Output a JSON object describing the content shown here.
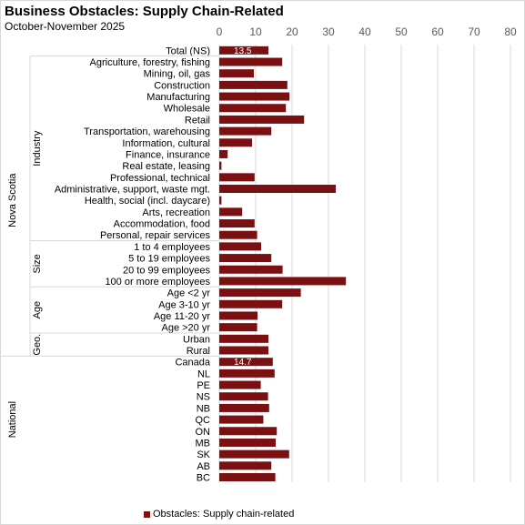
{
  "title": "Business Obstacles: Supply Chain-Related",
  "subtitle": "October-November 2025",
  "colors": {
    "bar": "#7b1012",
    "grid": "#d9d9d9",
    "axis_text": "#595959"
  },
  "chart_data": {
    "type": "bar",
    "orientation": "horizontal",
    "title": "Business Obstacles: Supply Chain-Related",
    "subtitle": "October-November 2025",
    "xlim": [
      0,
      80
    ],
    "x_ticks": [
      "0",
      "10",
      "20",
      "30",
      "40",
      "50",
      "60",
      "70",
      "80"
    ],
    "x_tick_values": [
      0,
      10,
      20,
      30,
      40,
      50,
      60,
      70,
      80
    ],
    "x_axis_position": "top",
    "grid": true,
    "legend_position": "bottom",
    "categories": [
      "Total (NS)",
      "Agriculture, forestry, fishing",
      "Mining, oil, gas",
      "Construction",
      "Manufacturing",
      "Wholesale",
      "Retail",
      "Transportation, warehousing",
      "Information, cultural",
      "Finance, insurance",
      "Real estate, leasing",
      "Professional, technical",
      "Administrative, support, waste mgt.",
      "Health, social (incl. daycare)",
      "Arts, recreation",
      "Accommodation, food",
      "Personal, repair services",
      "1 to 4 employees",
      "5 to 19 employees",
      "20 to 99 employees",
      "100 or more employees",
      "Age <2 yr",
      "Age 3-10 yr",
      "Age 11-20 yr",
      "Age >20 yr",
      "Urban",
      "Rural",
      "Canada",
      "NL",
      "PE",
      "NS",
      "NB",
      "QC",
      "ON",
      "MB",
      "SK",
      "AB",
      "BC"
    ],
    "series": [
      {
        "name": "Obstacles: Supply chain-related",
        "values": [
          13.5,
          17.3,
          9.5,
          18.7,
          19.3,
          18.3,
          23.3,
          14.3,
          9.0,
          2.3,
          0.6,
          9.7,
          32.0,
          0.6,
          6.3,
          9.7,
          10.4,
          11.5,
          14.3,
          17.4,
          34.8,
          22.4,
          17.3,
          10.5,
          10.4,
          13.5,
          13.5,
          14.7,
          15.2,
          11.4,
          13.4,
          13.7,
          12.1,
          15.8,
          15.5,
          19.2,
          14.3,
          15.4
        ]
      }
    ],
    "data_labels": [
      {
        "category": "Total (NS)",
        "text": "13.5"
      },
      {
        "category": "Canada",
        "text": "14.7"
      }
    ],
    "groups": [
      {
        "label": "Nova Scotia",
        "level": 1,
        "from": "Total (NS)",
        "to": "Rural"
      },
      {
        "label": "Industry",
        "level": 2,
        "from": "Agriculture, forestry, fishing",
        "to": "Personal, repair services"
      },
      {
        "label": "Size",
        "level": 2,
        "from": "1 to 4 employees",
        "to": "100 or more employees"
      },
      {
        "label": "Age",
        "level": 2,
        "from": "Age <2 yr",
        "to": "Age >20 yr"
      },
      {
        "label": "Geo.",
        "level": 2,
        "from": "Urban",
        "to": "Rural"
      },
      {
        "label": "National",
        "level": 1,
        "from": "Canada",
        "to": "BC"
      }
    ]
  },
  "legend": {
    "label": "Obstacles: Supply chain-related"
  }
}
